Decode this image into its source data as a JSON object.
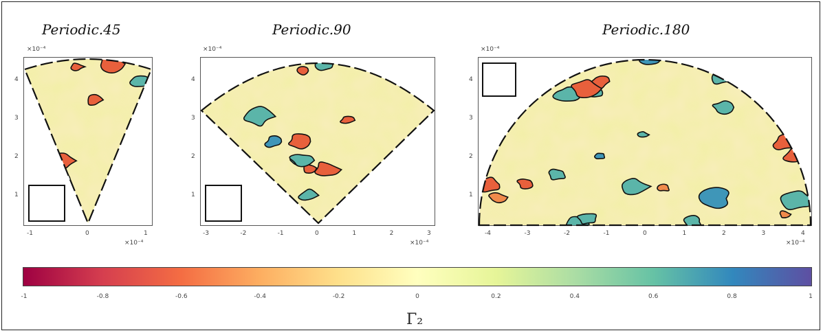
{
  "chart_data": [
    {
      "type": "heatmap",
      "title": "Periodic.45",
      "x_ticks": [
        "-1",
        "0",
        "1"
      ],
      "y_ticks": [
        "4",
        "3",
        "2",
        "1"
      ],
      "x_exponent": "×10⁻⁴",
      "y_exponent": "×10⁻⁴",
      "sector_angle_deg": 45
    },
    {
      "type": "heatmap",
      "title": "Periodic.90",
      "x_ticks": [
        "-3",
        "-2",
        "-1",
        "0",
        "1",
        "2",
        "3"
      ],
      "y_ticks": [
        "4",
        "3",
        "2",
        "1"
      ],
      "x_exponent": "×10⁻⁴",
      "y_exponent": "×10⁻⁴",
      "sector_angle_deg": 90
    },
    {
      "type": "heatmap",
      "title": "Periodic.180",
      "x_ticks": [
        "-4",
        "-3",
        "-2",
        "-1",
        "0",
        "1",
        "2",
        "3",
        "4"
      ],
      "y_ticks": [
        "4",
        "3",
        "2",
        "1"
      ],
      "x_exponent": "×10⁻⁴",
      "y_exponent": "×10⁻⁴",
      "sector_angle_deg": 180
    }
  ],
  "colorbar": {
    "label": "Γ₂",
    "ticks": [
      "-1",
      "-0.8",
      "-0.6",
      "-0.4",
      "-0.2",
      "0",
      "0.2",
      "0.4",
      "0.6",
      "0.8",
      "1"
    ],
    "range": [
      -1,
      1
    ],
    "colormap": "Spectral",
    "low_color": "#9e0142",
    "high_color": "#5e4fa2"
  }
}
